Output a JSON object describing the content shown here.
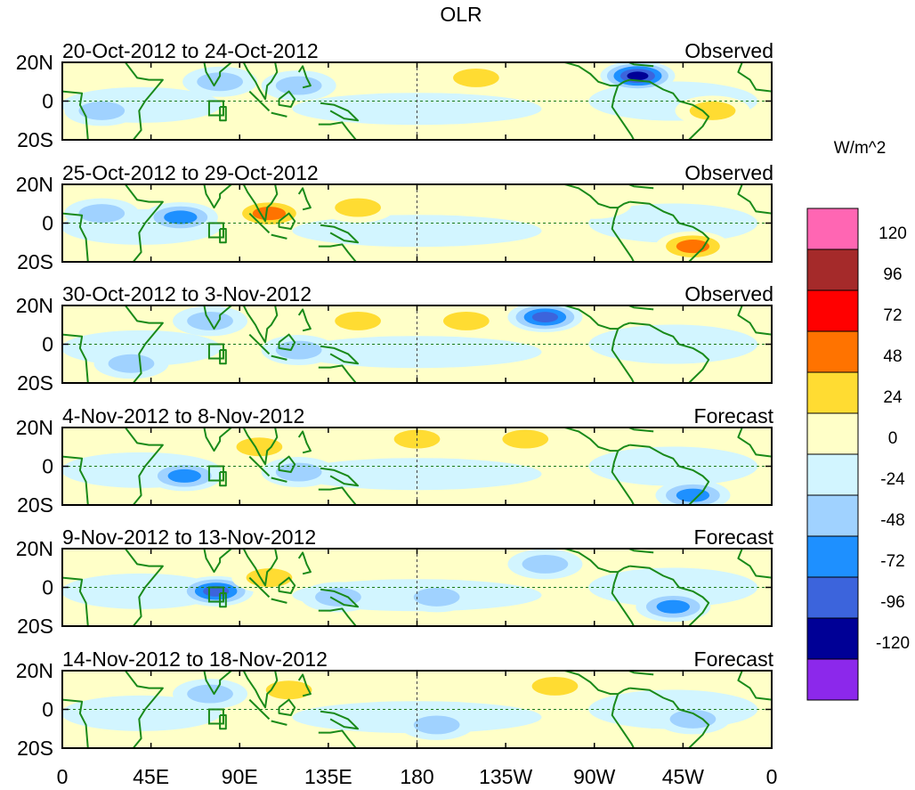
{
  "chart_data": {
    "type": "heatmap",
    "title": "OLR",
    "units": "W/m^2",
    "lat_ticks": [
      "20N",
      "0",
      "20S"
    ],
    "lat_range": [
      -20,
      20
    ],
    "lon_ticks": [
      "0",
      "45E",
      "90E",
      "135E",
      "180",
      "135W",
      "90W",
      "45W",
      "0"
    ],
    "lon_range": [
      0,
      360
    ],
    "colorbar": {
      "levels": [
        "120",
        "96",
        "72",
        "48",
        "24",
        "0",
        "-24",
        "-48",
        "-72",
        "-96",
        "-120"
      ],
      "colors": [
        "#ff66b3",
        "#a52a2a",
        "#ff0000",
        "#ff7300",
        "#ffdc32",
        "#ffffc8",
        "#d2f5ff",
        "#a0d2ff",
        "#1e90ff",
        "#3c64dc",
        "#000096",
        "#8c28eb"
      ]
    },
    "panels": [
      {
        "period": "20-Oct-2012 to 24-Oct-2012",
        "status": "Observed",
        "anomalies": [
          {
            "lon": 210,
            "lat": 12,
            "value": 40
          },
          {
            "lon": 292,
            "lat": 13,
            "value": -110
          },
          {
            "lon": 120,
            "lat": 8,
            "value": -40
          },
          {
            "lon": 80,
            "lat": 10,
            "value": -35
          },
          {
            "lon": 20,
            "lat": -5,
            "value": -30
          },
          {
            "lon": 330,
            "lat": -5,
            "value": 30
          },
          {
            "lon": 255,
            "lat": 10,
            "value": 20
          }
        ]
      },
      {
        "period": "25-Oct-2012 to 29-Oct-2012",
        "status": "Observed",
        "anomalies": [
          {
            "lon": 60,
            "lat": 3,
            "value": -60
          },
          {
            "lon": 105,
            "lat": 5,
            "value": 55
          },
          {
            "lon": 150,
            "lat": 8,
            "value": 40
          },
          {
            "lon": 320,
            "lat": -12,
            "value": 55
          },
          {
            "lon": 270,
            "lat": 10,
            "value": 20
          },
          {
            "lon": 20,
            "lat": 5,
            "value": -30
          }
        ]
      },
      {
        "period": "30-Oct-2012 to 3-Nov-2012",
        "status": "Observed",
        "anomalies": [
          {
            "lon": 245,
            "lat": 14,
            "value": -90
          },
          {
            "lon": 75,
            "lat": 12,
            "value": -45
          },
          {
            "lon": 150,
            "lat": 12,
            "value": 35
          },
          {
            "lon": 205,
            "lat": 12,
            "value": 25
          },
          {
            "lon": 35,
            "lat": -10,
            "value": -30
          },
          {
            "lon": 120,
            "lat": -3,
            "value": -25
          }
        ]
      },
      {
        "period": "4-Nov-2012 to 8-Nov-2012",
        "status": "Forecast",
        "anomalies": [
          {
            "lon": 62,
            "lat": -5,
            "value": -60
          },
          {
            "lon": 320,
            "lat": -15,
            "value": -70
          },
          {
            "lon": 180,
            "lat": 14,
            "value": 30
          },
          {
            "lon": 100,
            "lat": 10,
            "value": 25
          },
          {
            "lon": 235,
            "lat": 14,
            "value": 25
          },
          {
            "lon": 120,
            "lat": -3,
            "value": -30
          }
        ]
      },
      {
        "period": "9-Nov-2012 to 13-Nov-2012",
        "status": "Forecast",
        "anomalies": [
          {
            "lon": 78,
            "lat": -2,
            "value": -80
          },
          {
            "lon": 310,
            "lat": -10,
            "value": -70
          },
          {
            "lon": 140,
            "lat": -5,
            "value": -30
          },
          {
            "lon": 105,
            "lat": 5,
            "value": 25
          },
          {
            "lon": 245,
            "lat": 12,
            "value": -30
          },
          {
            "lon": 190,
            "lat": -5,
            "value": -25
          }
        ]
      },
      {
        "period": "14-Nov-2012 to 18-Nov-2012",
        "status": "Forecast",
        "anomalies": [
          {
            "lon": 250,
            "lat": 12,
            "value": 35
          },
          {
            "lon": 115,
            "lat": 10,
            "value": 25
          },
          {
            "lon": 75,
            "lat": 8,
            "value": -30
          },
          {
            "lon": 190,
            "lat": -8,
            "value": -25
          },
          {
            "lon": 320,
            "lat": -5,
            "value": -25
          }
        ]
      }
    ]
  }
}
